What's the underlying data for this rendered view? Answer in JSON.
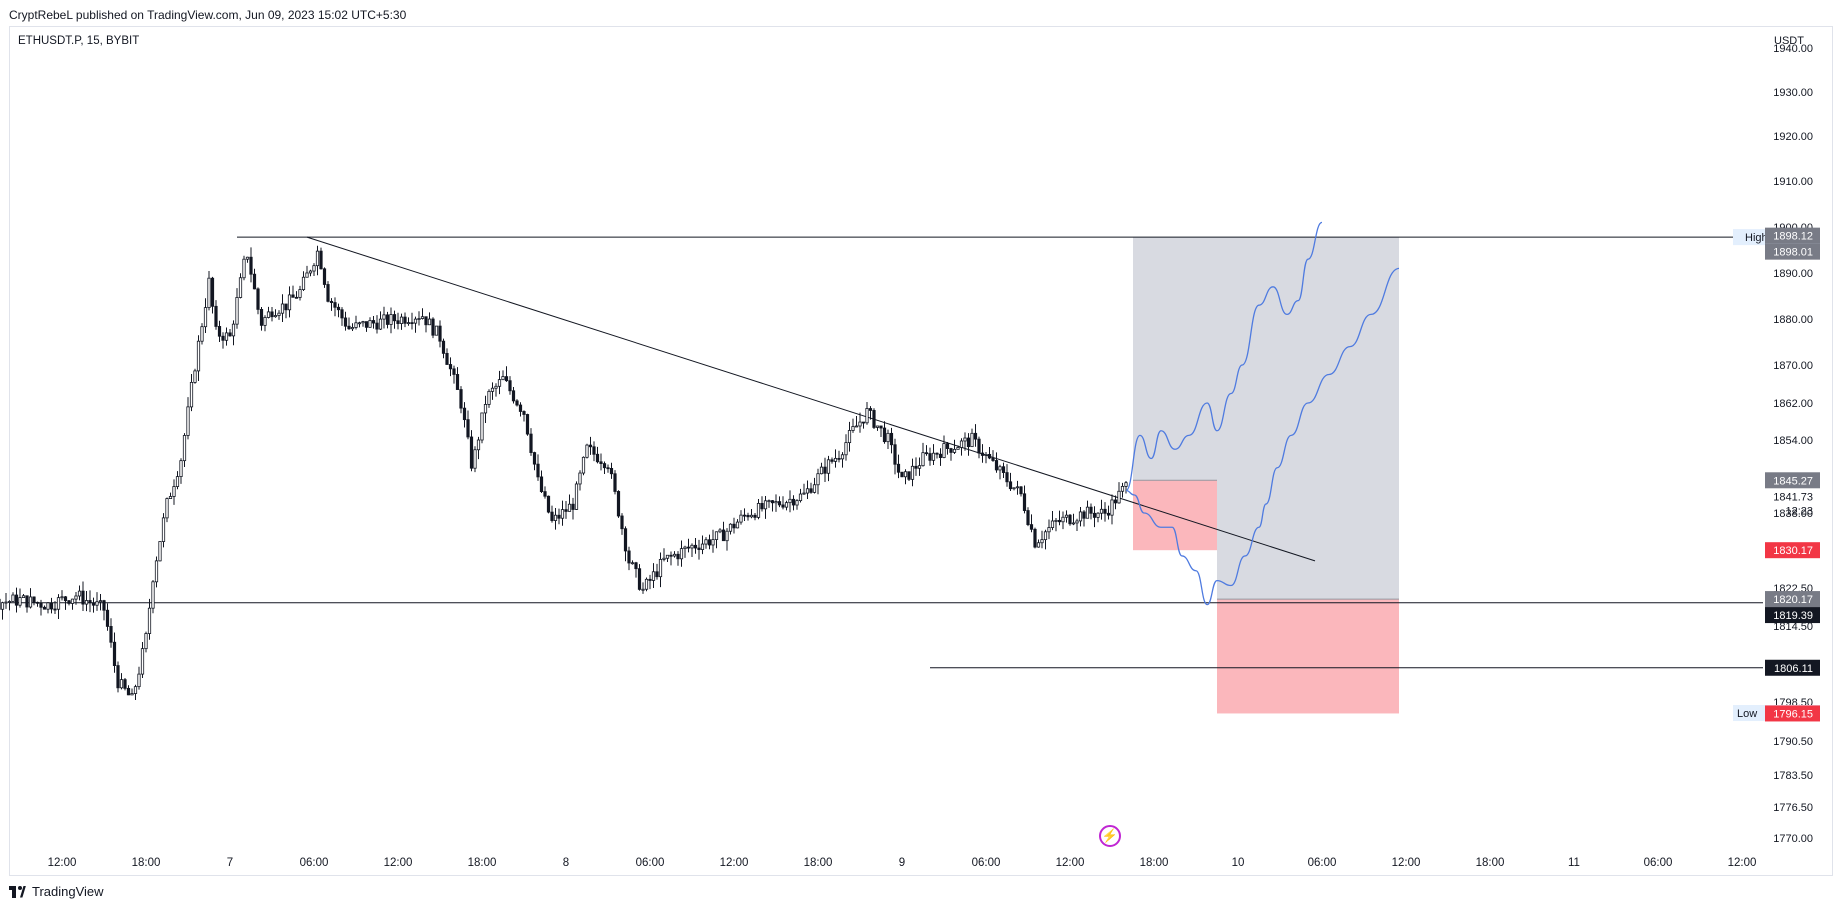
{
  "header": {
    "attribution": "CryptRebeL published on TradingView.com, Jun 09, 2023 15:02 UTC+5:30"
  },
  "footer": {
    "brand": "TradingView"
  },
  "colors": {
    "up": "#131722",
    "down": "#131722",
    "reward_zone": "#d1d4dc",
    "risk_zone": "#fbb3b8",
    "projection": "#4f7be0",
    "red_tag": "#f23645",
    "grey_tag": "#787b86",
    "black_tag": "#131722"
  },
  "icons": {
    "bolt": "lightning-bolt-icon"
  },
  "chart_data": {
    "type": "candlestick",
    "symbol": "ETHUSDT.P, 15, BYBIT",
    "unit": "USDT",
    "y_axis": {
      "ticks": [
        1770.0,
        1776.5,
        1783.5,
        1790.5,
        1798.5,
        1806.5,
        1814.5,
        1822.5,
        1830.0,
        1838.0,
        1846.0,
        1854.0,
        1862.0,
        1870.0,
        1880.0,
        1890.0,
        1900.0,
        1910.0,
        1920.0,
        1930.0,
        1940.0
      ],
      "tick_labels": [
        "1770.00",
        "1776.50",
        "1783.50",
        "1790.50",
        "1798.50",
        "1806.50",
        "1814.50",
        "1822.50",
        "1830.00",
        "1838.00",
        "1846.00",
        "1854.00",
        "1862.00",
        "1870.00",
        "1880.00",
        "1890.00",
        "1900.00",
        "1910.00",
        "1920.00",
        "1930.00",
        "1940.00"
      ]
    },
    "x_axis": {
      "range_hours": [
        -24,
        132
      ],
      "ticks": [
        {
          "h": -12,
          "label": "12:00"
        },
        {
          "h": -6,
          "label": "18:00"
        },
        {
          "h": 0,
          "label": "7"
        },
        {
          "h": 6,
          "label": "06:00"
        },
        {
          "h": 12,
          "label": "12:00"
        },
        {
          "h": 18,
          "label": "18:00"
        },
        {
          "h": 24,
          "label": "8"
        },
        {
          "h": 30,
          "label": "06:00"
        },
        {
          "h": 36,
          "label": "12:00"
        },
        {
          "h": 42,
          "label": "18:00"
        },
        {
          "h": 48,
          "label": "9"
        },
        {
          "h": 54,
          "label": "06:00"
        },
        {
          "h": 60,
          "label": "12:00"
        },
        {
          "h": 66,
          "label": "18:00"
        },
        {
          "h": 72,
          "label": "10"
        },
        {
          "h": 78,
          "label": "06:00"
        },
        {
          "h": 84,
          "label": "12:00"
        },
        {
          "h": 90,
          "label": "18:00"
        },
        {
          "h": 96,
          "label": "11"
        },
        {
          "h": 102,
          "label": "06:00"
        },
        {
          "h": 108,
          "label": "12:00"
        }
      ]
    },
    "price_path": [
      [
        -24,
        1816
      ],
      [
        -22,
        1818
      ],
      [
        -20,
        1817
      ],
      [
        -18,
        1819
      ],
      [
        -15,
        1820
      ],
      [
        -13,
        1819
      ],
      [
        -11,
        1821
      ],
      [
        -9,
        1818
      ],
      [
        -8,
        1803
      ],
      [
        -7,
        1799
      ],
      [
        -6,
        1812
      ],
      [
        -5.5,
        1825
      ],
      [
        -4.5,
        1840
      ],
      [
        -3.5,
        1850
      ],
      [
        -2.5,
        1870
      ],
      [
        -1.5,
        1888
      ],
      [
        -1,
        1877
      ],
      [
        0,
        1876
      ],
      [
        1.2,
        1895
      ],
      [
        2.2,
        1879
      ],
      [
        3,
        1882
      ],
      [
        4,
        1883
      ],
      [
        5,
        1886
      ],
      [
        6.3,
        1895
      ],
      [
        7,
        1885
      ],
      [
        8.5,
        1878
      ],
      [
        10,
        1879
      ],
      [
        12,
        1880
      ],
      [
        13.7,
        1881
      ],
      [
        15,
        1876
      ],
      [
        16.5,
        1862
      ],
      [
        17.3,
        1848
      ],
      [
        18.3,
        1863
      ],
      [
        19.5,
        1867
      ],
      [
        21,
        1860
      ],
      [
        22,
        1845
      ],
      [
        23,
        1836
      ],
      [
        24.5,
        1840
      ],
      [
        25.5,
        1852
      ],
      [
        27,
        1849
      ],
      [
        28.5,
        1828
      ],
      [
        29.5,
        1822
      ],
      [
        31,
        1828
      ],
      [
        33,
        1831
      ],
      [
        35,
        1833
      ],
      [
        37,
        1838
      ],
      [
        39,
        1840
      ],
      [
        41,
        1842
      ],
      [
        42.5,
        1848
      ],
      [
        43.5,
        1851
      ],
      [
        44.5,
        1856
      ],
      [
        45.5,
        1860
      ],
      [
        47,
        1854
      ],
      [
        48,
        1845
      ],
      [
        49.5,
        1850
      ],
      [
        51,
        1852
      ],
      [
        53,
        1854
      ],
      [
        55,
        1847
      ],
      [
        56.5,
        1842
      ],
      [
        57.5,
        1832
      ],
      [
        59,
        1836
      ],
      [
        61,
        1838
      ],
      [
        62.5,
        1838
      ],
      [
        64,
        1844
      ]
    ],
    "high_label": {
      "text": "High",
      "value": 1897.8
    },
    "low_label": {
      "text": "Low",
      "value": 1796.24
    },
    "price_tags": [
      {
        "value": 1898.12,
        "text": "1898.12",
        "style": "grey"
      },
      {
        "value": 1898.01,
        "text": "1898.01",
        "style": "grey"
      },
      {
        "value": 1845.27,
        "text": "1845.27",
        "style": "grey"
      },
      {
        "value": 1841.73,
        "text": "1841.73",
        "style": "plain"
      },
      {
        "value": 1830.17,
        "text": "1830.17",
        "style": "red"
      },
      {
        "value": 1820.17,
        "text": "1820.17",
        "style": "grey"
      },
      {
        "value": 1819.39,
        "text": "1819.39",
        "style": "black"
      },
      {
        "value": 1806.11,
        "text": "1806.11",
        "style": "black"
      },
      {
        "value": 1796.15,
        "text": "1796.15",
        "style": "red"
      }
    ],
    "countdown": "12:23",
    "horizontal_lines": [
      {
        "value": 1897.8,
        "from_h": 0.5,
        "to_h": 125
      },
      {
        "value": 1819.39,
        "from_h": -24,
        "to_h": 132
      },
      {
        "value": 1806.11,
        "from_h": 50,
        "to_h": 132
      }
    ],
    "trendline": {
      "from": [
        5.5,
        1897.8
      ],
      "to": [
        77.5,
        1828
      ]
    },
    "positions": [
      {
        "from_h": 64.5,
        "to_h": 70.5,
        "entry": 1845.27,
        "target": 1897.8,
        "stop": 1830.17
      },
      {
        "from_h": 70.5,
        "to_h": 83.5,
        "entry": 1820.17,
        "target": 1897.8,
        "stop": 1796.15
      }
    ],
    "projections": [
      [
        [
          64,
          1843
        ],
        [
          65,
          1855
        ],
        [
          65.8,
          1850
        ],
        [
          66.5,
          1856
        ],
        [
          67.5,
          1852
        ],
        [
          68.5,
          1855
        ],
        [
          69.8,
          1862
        ],
        [
          70.5,
          1856
        ],
        [
          71.5,
          1864
        ],
        [
          72.3,
          1870
        ],
        [
          73.5,
          1883
        ],
        [
          74.5,
          1887
        ],
        [
          75.5,
          1881
        ],
        [
          76.3,
          1884
        ],
        [
          77,
          1893
        ],
        [
          78,
          1901
        ]
      ],
      [
        [
          64,
          1843
        ],
        [
          64.6,
          1842
        ],
        [
          65.3,
          1838
        ],
        [
          66.5,
          1835
        ],
        [
          67.3,
          1835
        ],
        [
          68,
          1829
        ],
        [
          69,
          1826
        ],
        [
          69.8,
          1819
        ],
        [
          70.5,
          1824
        ],
        [
          71.5,
          1823
        ],
        [
          72.5,
          1829
        ],
        [
          73.5,
          1835
        ],
        [
          74,
          1840
        ],
        [
          74.8,
          1848
        ],
        [
          75.8,
          1855
        ],
        [
          77,
          1862
        ],
        [
          78.5,
          1868
        ],
        [
          80,
          1874
        ],
        [
          81.5,
          1881
        ],
        [
          83.5,
          1891
        ]
      ]
    ]
  }
}
